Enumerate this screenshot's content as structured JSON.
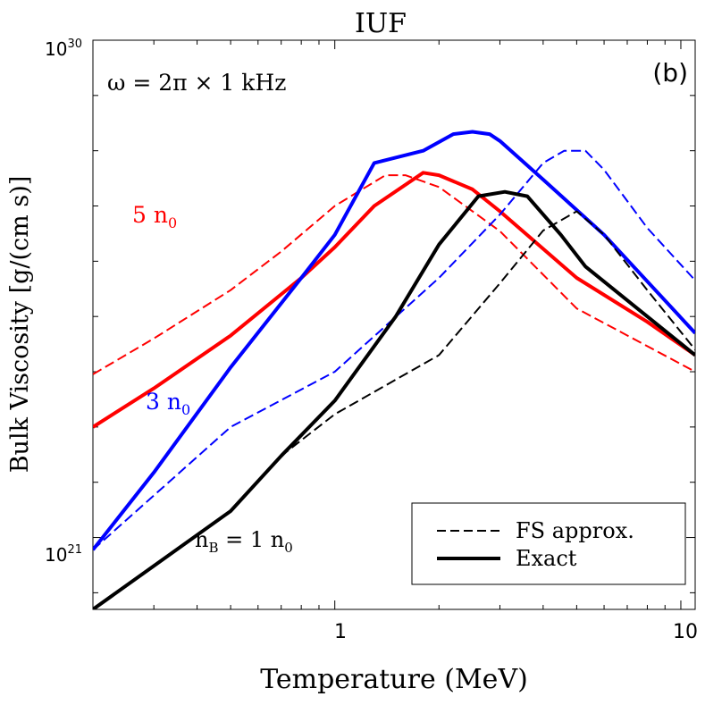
{
  "chart_data": {
    "type": "line",
    "title": "IUF",
    "panel_label": "(b)",
    "xlabel": "Temperature (MeV)",
    "ylabel": "Bulk Viscosity [g/(cm s)]",
    "xscale": "log",
    "yscale": "log",
    "xlim": [
      0.2,
      11.0
    ],
    "ylim": [
      5e+19,
      1e+30
    ],
    "x_tick_labels": [
      "1",
      "10"
    ],
    "y_tick_labels": [
      {
        "base": "10",
        "exp": "21"
      },
      {
        "base": "10",
        "exp": "30"
      }
    ],
    "omega_annotation": "ω = 2π × 1 kHz",
    "legend": {
      "placement": "lower-right",
      "entries": [
        {
          "label": "FS approx.",
          "style": "dashed"
        },
        {
          "label": "Exact",
          "style": "solid"
        }
      ]
    },
    "annotations": [
      {
        "id": "label-5n0",
        "main": "5 n",
        "sub": "0",
        "color": "#ff0000"
      },
      {
        "id": "label-3n0",
        "main": "3 n",
        "sub": "0",
        "color": "#0000ff"
      },
      {
        "id": "label-1n0",
        "main": "n",
        "sub": "B",
        "rest": " = 1 n",
        "sub2": "0",
        "color": "#000000"
      }
    ],
    "series": [
      {
        "density": "5 n0",
        "kind": "FS approx.",
        "color": "#ff0000",
        "dash": true,
        "x": [
          0.2,
          0.3,
          0.5,
          0.7,
          1.0,
          1.4,
          1.6,
          2.0,
          3.0,
          5.0,
          11.0
        ],
        "y": [
          9e+23,
          4e+24,
          3e+25,
          1.5e+26,
          1e+27,
          3.6e+27,
          3.6e+27,
          2.2e+27,
          3.5e+26,
          1.4e+25,
          1e+24
        ]
      },
      {
        "density": "5 n0",
        "kind": "Exact",
        "color": "#ff0000",
        "dash": false,
        "x": [
          0.2,
          0.3,
          0.5,
          0.8,
          1.0,
          1.3,
          1.8,
          2.0,
          2.5,
          3.0,
          5.0,
          8.0,
          11.0
        ],
        "y": [
          1e+23,
          5e+23,
          4.5e+24,
          5e+25,
          1.8e+26,
          1e+27,
          4e+27,
          3.6e+27,
          2e+27,
          8e+26,
          5e+25,
          8e+24,
          2e+24
        ]
      },
      {
        "density": "3 n0",
        "kind": "FS approx.",
        "color": "#0000ff",
        "dash": true,
        "x": [
          0.2,
          0.5,
          1.0,
          2.0,
          3.0,
          4.0,
          4.6,
          5.3,
          6.0,
          8.0,
          11.0
        ],
        "y": [
          6e+20,
          1e+23,
          1e+24,
          5e+25,
          7e+26,
          6e+27,
          1e+28,
          1e+28,
          4.5e+27,
          4e+26,
          4.5e+25
        ]
      },
      {
        "density": "3 n0",
        "kind": "Exact",
        "color": "#0000ff",
        "dash": false,
        "x": [
          0.2,
          0.3,
          0.5,
          0.8,
          1.0,
          1.3,
          1.8,
          2.2,
          2.5,
          2.8,
          3.0,
          4.0,
          6.0,
          11.0
        ],
        "y": [
          6e+20,
          1.5e+22,
          1.2e+24,
          5e+25,
          3e+26,
          6e+27,
          1e+28,
          2e+28,
          2.2e+28,
          2e+28,
          1.5e+28,
          3e+27,
          3e+26,
          5e+24
        ]
      },
      {
        "density": "1 n0",
        "kind": "FS approx.",
        "color": "#000000",
        "dash": true,
        "x": [
          0.2,
          0.5,
          0.7,
          1.0,
          2.0,
          3.0,
          4.0,
          5.0,
          6.0,
          8.0,
          11.0
        ],
        "y": [
          5e+19,
          3e+21,
          3e+22,
          1.7e+23,
          2e+24,
          4e+25,
          3.6e+26,
          8e+26,
          3e+26,
          3e+25,
          2.5e+24
        ]
      },
      {
        "density": "1 n0",
        "kind": "Exact",
        "color": "#000000",
        "dash": false,
        "x": [
          0.2,
          0.5,
          0.7,
          1.0,
          1.5,
          2.0,
          2.6,
          3.1,
          3.6,
          4.5,
          5.3,
          8.0,
          11.0
        ],
        "y": [
          5e+19,
          3e+21,
          3e+22,
          3e+23,
          1e+25,
          2e+26,
          1.5e+27,
          1.8e+27,
          1.5e+27,
          3e+26,
          8e+25,
          1e+25,
          2e+24
        ]
      }
    ]
  }
}
